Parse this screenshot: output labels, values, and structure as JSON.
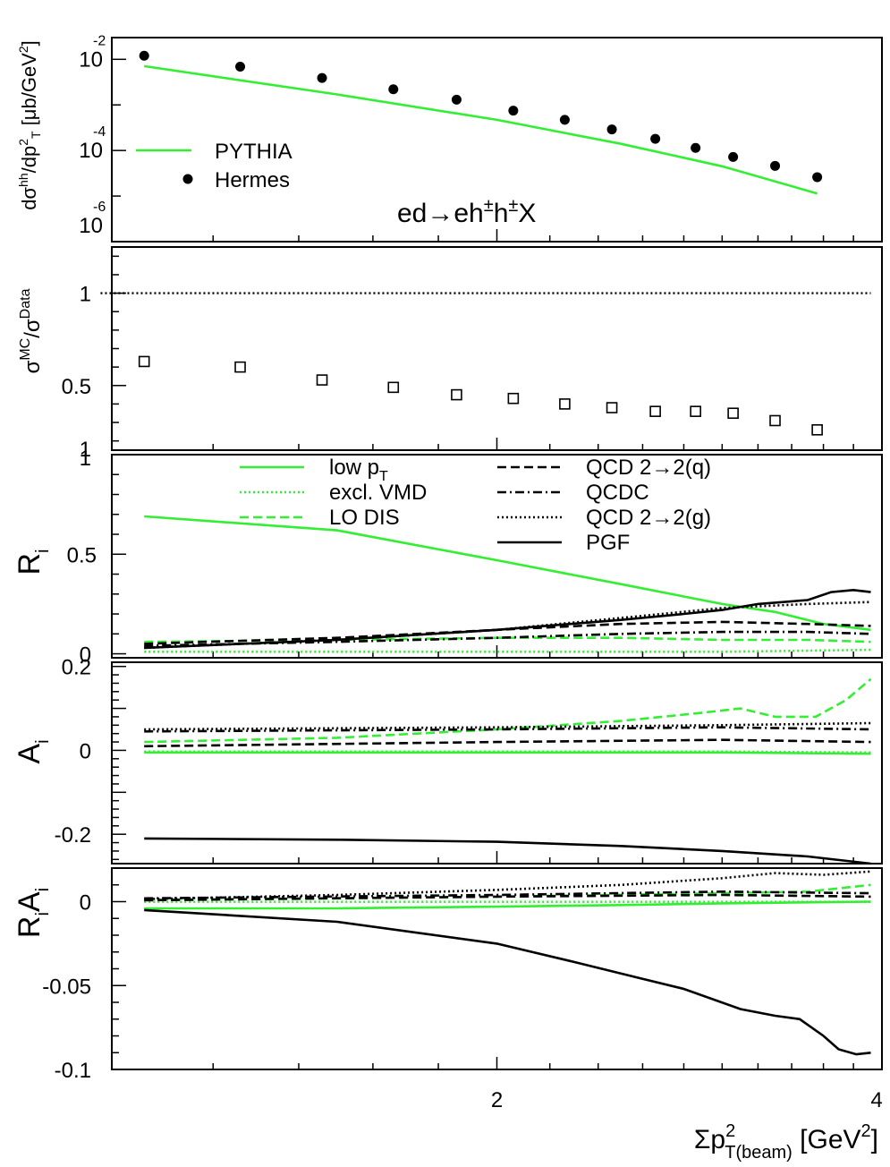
{
  "chart_data": [
    {
      "type": "scatter",
      "panel": "top",
      "y_scale": "log",
      "ylim": [
        1e-06,
        0.03
      ],
      "xlim": [
        1.0,
        4.0
      ],
      "ylabel": "dσ^hh/dp_T^2 [μb/GeV^2]",
      "ytick_labels": [
        {
          "value": 0.01,
          "base": "10",
          "exp": "-2"
        },
        {
          "value": 0.0001,
          "base": "10",
          "exp": "-4"
        },
        {
          "value": 1e-06,
          "base": "10",
          "exp": "-6"
        }
      ],
      "annotation": "ed→eh±h±X",
      "legend": [
        {
          "label": "PYTHIA",
          "color": "#33ee33",
          "style": "line"
        },
        {
          "label": "Hermes",
          "color": "#000000",
          "style": "dot"
        }
      ],
      "series": [
        {
          "name": "Hermes",
          "x": [
            1.06,
            1.26,
            1.46,
            1.66,
            1.86,
            2.06,
            2.26,
            2.46,
            2.66,
            2.86,
            3.06,
            3.3,
            3.56
          ],
          "y": [
            0.012,
            0.0069,
            0.0039,
            0.0022,
            0.0013,
            0.00075,
            0.00047,
            0.00029,
            0.00018,
            0.000114,
            7.2e-05,
            4.6e-05,
            2.6e-05
          ]
        },
        {
          "name": "PYTHIA",
          "x": [
            1.06,
            1.5,
            2.0,
            2.5,
            3.0,
            3.56
          ],
          "y": [
            0.0071,
            0.0017,
            0.00047,
            0.00014,
            4.5e-05,
            1.14e-05
          ]
        }
      ]
    },
    {
      "type": "scatter",
      "panel": "ratio",
      "ylim": [
        0.15,
        1.25
      ],
      "ylabel": "σ^MC/σ^Data",
      "ytick_labels": [
        "1",
        "0.5",
        "1"
      ],
      "series": [
        {
          "name": "MC/Data",
          "x": [
            1.06,
            1.26,
            1.46,
            1.66,
            1.86,
            2.06,
            2.26,
            2.46,
            2.66,
            2.86,
            3.06,
            3.3,
            3.56
          ],
          "y": [
            0.63,
            0.6,
            0.53,
            0.49,
            0.45,
            0.43,
            0.4,
            0.38,
            0.36,
            0.36,
            0.35,
            0.31,
            0.26
          ]
        },
        {
          "name": "unity",
          "x": [
            0.98,
            3.92
          ],
          "y": [
            1.0,
            1.0
          ]
        }
      ]
    },
    {
      "type": "line",
      "panel": "R",
      "ylim": [
        -0.02,
        1.0
      ],
      "ylabel": "R_i",
      "ytick_labels": [
        "1",
        "0.5",
        "0"
      ],
      "legend_left": [
        {
          "label": "low pT",
          "color": "#33ee33",
          "dash": "solid"
        },
        {
          "label": "excl. VMD",
          "color": "#33ee33",
          "dash": "dotted"
        },
        {
          "label": "LO DIS",
          "color": "#33ee33",
          "dash": "dashed"
        }
      ],
      "legend_right": [
        {
          "label": "QCD 2→2(q)",
          "color": "#000000",
          "dash": "dashed"
        },
        {
          "label": "QCDC",
          "color": "#000000",
          "dash": "dashdot"
        },
        {
          "label": "QCD 2→2(g)",
          "color": "#000000",
          "dash": "dotted"
        },
        {
          "label": "PGF",
          "color": "#000000",
          "dash": "solid"
        }
      ],
      "series": [
        {
          "name": "low pT",
          "color": "#33ee33",
          "dash": "solid",
          "x": [
            1.06,
            1.5,
            2.0,
            2.5,
            3.0,
            3.3,
            3.6,
            3.92
          ],
          "y": [
            0.69,
            0.62,
            0.47,
            0.35,
            0.25,
            0.21,
            0.15,
            0.12
          ]
        },
        {
          "name": "excl. VMD",
          "color": "#33ee33",
          "dash": "dotted",
          "x": [
            1.06,
            2.0,
            3.0,
            3.92
          ],
          "y": [
            0.01,
            0.01,
            0.01,
            0.02
          ]
        },
        {
          "name": "LO DIS",
          "color": "#33ee33",
          "dash": "dashed",
          "x": [
            1.06,
            1.5,
            2.0,
            2.5,
            3.0,
            3.5,
            3.92
          ],
          "y": [
            0.06,
            0.07,
            0.08,
            0.08,
            0.07,
            0.07,
            0.06
          ]
        },
        {
          "name": "QCD 2→2(q)",
          "color": "#000000",
          "dash": "dashed",
          "x": [
            1.06,
            1.5,
            2.0,
            2.5,
            3.0,
            3.5,
            3.92
          ],
          "y": [
            0.05,
            0.08,
            0.12,
            0.15,
            0.16,
            0.15,
            0.14
          ]
        },
        {
          "name": "QCDC",
          "color": "#000000",
          "dash": "dashdot",
          "x": [
            1.06,
            1.5,
            2.0,
            2.5,
            3.0,
            3.5,
            3.92
          ],
          "y": [
            0.04,
            0.06,
            0.08,
            0.1,
            0.11,
            0.11,
            0.1
          ]
        },
        {
          "name": "QCD 2→2(g)",
          "color": "#000000",
          "dash": "dotted",
          "x": [
            1.06,
            1.5,
            2.0,
            2.5,
            3.0,
            3.5,
            3.92
          ],
          "y": [
            0.03,
            0.07,
            0.12,
            0.18,
            0.23,
            0.25,
            0.26
          ]
        },
        {
          "name": "PGF",
          "color": "#000000",
          "dash": "solid",
          "x": [
            1.06,
            1.5,
            2.0,
            2.5,
            2.8,
            3.0,
            3.2,
            3.5,
            3.65,
            3.8,
            3.92
          ],
          "y": [
            0.03,
            0.07,
            0.12,
            0.17,
            0.2,
            0.22,
            0.25,
            0.27,
            0.31,
            0.32,
            0.31
          ]
        }
      ]
    },
    {
      "type": "line",
      "panel": "A",
      "ylim": [
        -0.27,
        0.21
      ],
      "ylabel": "A_i",
      "ytick_labels": [
        "0.2",
        "0",
        "-0.2"
      ],
      "series": [
        {
          "name": "low pT",
          "color": "#33ee33",
          "dash": "solid",
          "x": [
            1.06,
            2.0,
            3.0,
            3.92
          ],
          "y": [
            -0.005,
            -0.005,
            -0.005,
            -0.008
          ]
        },
        {
          "name": "excl. VMD",
          "color": "#33ee33",
          "dash": "dotted",
          "x": [
            1.06,
            2.0,
            3.0,
            3.92
          ],
          "y": [
            -0.003,
            -0.003,
            -0.003,
            -0.005
          ]
        },
        {
          "name": "LO DIS",
          "color": "#33ee33",
          "dash": "dashed",
          "x": [
            1.06,
            1.5,
            2.0,
            2.5,
            2.9,
            3.1,
            3.3,
            3.55,
            3.75,
            3.92
          ],
          "y": [
            0.02,
            0.03,
            0.05,
            0.07,
            0.09,
            0.1,
            0.08,
            0.08,
            0.12,
            0.17
          ]
        },
        {
          "name": "QCD 2→2(q)",
          "color": "#000000",
          "dash": "dashed",
          "x": [
            1.06,
            2.0,
            3.0,
            3.92
          ],
          "y": [
            0.01,
            0.02,
            0.025,
            0.02
          ]
        },
        {
          "name": "QCDC",
          "color": "#000000",
          "dash": "dashdot",
          "x": [
            1.06,
            2.0,
            3.0,
            3.92
          ],
          "y": [
            0.045,
            0.05,
            0.055,
            0.05
          ]
        },
        {
          "name": "QCD 2→2(g)",
          "color": "#000000",
          "dash": "dotted",
          "x": [
            1.06,
            2.0,
            3.0,
            3.92
          ],
          "y": [
            0.05,
            0.055,
            0.06,
            0.065
          ]
        },
        {
          "name": "PGF",
          "color": "#000000",
          "dash": "solid",
          "x": [
            1.06,
            1.5,
            2.0,
            2.5,
            3.0,
            3.5,
            3.92
          ],
          "y": [
            -0.21,
            -0.213,
            -0.218,
            -0.228,
            -0.24,
            -0.253,
            -0.27
          ]
        }
      ]
    },
    {
      "type": "line",
      "panel": "RA",
      "ylim": [
        -0.1,
        0.02
      ],
      "ylabel": "R_iA_i",
      "ytick_labels": [
        "0",
        "-0.05",
        "-0.1"
      ],
      "xlabel": "Σp²_T(beam) [GeV²]",
      "xtick_labels": [
        {
          "value": 2,
          "label": "2"
        },
        {
          "value": 4,
          "label": "4"
        }
      ],
      "series": [
        {
          "name": "low pT",
          "color": "#33ee33",
          "dash": "solid",
          "x": [
            1.06,
            1.5,
            2.0,
            2.5,
            3.0,
            3.92
          ],
          "y": [
            -0.004,
            -0.004,
            -0.003,
            -0.002,
            -0.001,
            0.0
          ]
        },
        {
          "name": "excl. VMD",
          "color": "#33ee33",
          "dash": "dotted",
          "x": [
            1.06,
            3.92
          ],
          "y": [
            -0.0001,
            -0.0001
          ]
        },
        {
          "name": "LO DIS",
          "color": "#33ee33",
          "dash": "dashed",
          "x": [
            1.06,
            2.0,
            3.0,
            3.5,
            3.92
          ],
          "y": [
            0.001,
            0.003,
            0.005,
            0.006,
            0.01
          ]
        },
        {
          "name": "QCD 2→2(q)",
          "color": "#000000",
          "dash": "dashed",
          "x": [
            1.06,
            2.0,
            3.0,
            3.92
          ],
          "y": [
            0.0008,
            0.003,
            0.004,
            0.003
          ]
        },
        {
          "name": "QCDC",
          "color": "#000000",
          "dash": "dashdot",
          "x": [
            1.06,
            2.0,
            3.0,
            3.92
          ],
          "y": [
            0.002,
            0.004,
            0.006,
            0.005
          ]
        },
        {
          "name": "QCD 2→2(g)",
          "color": "#000000",
          "dash": "dotted",
          "x": [
            1.06,
            1.5,
            2.0,
            2.5,
            3.0,
            3.3,
            3.6,
            3.92
          ],
          "y": [
            0.0015,
            0.004,
            0.007,
            0.01,
            0.014,
            0.017,
            0.016,
            0.018
          ]
        },
        {
          "name": "PGF",
          "color": "#000000",
          "dash": "solid",
          "x": [
            1.06,
            1.5,
            2.0,
            2.3,
            2.6,
            2.8,
            3.1,
            3.3,
            3.45,
            3.6,
            3.7,
            3.82,
            3.92
          ],
          "y": [
            -0.005,
            -0.012,
            -0.025,
            -0.036,
            -0.046,
            -0.052,
            -0.064,
            -0.068,
            -0.07,
            -0.08,
            -0.088,
            -0.091,
            -0.09
          ]
        }
      ]
    }
  ]
}
